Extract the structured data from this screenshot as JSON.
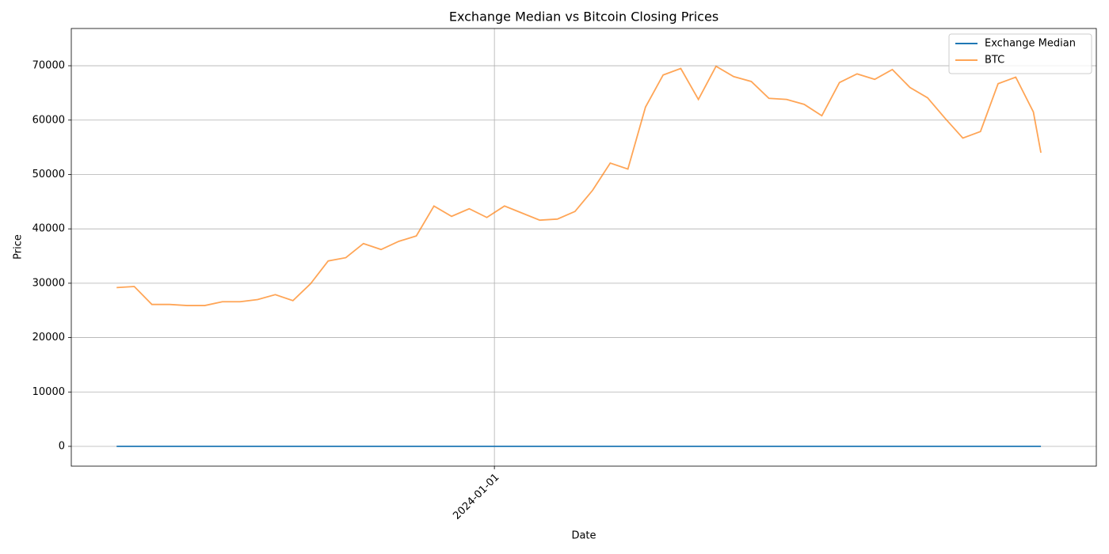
{
  "chart_data": {
    "type": "line",
    "title": "Exchange Median vs Bitcoin Closing Prices",
    "x_label": "Date",
    "y_label": "Price",
    "x": [
      "2023-08-04",
      "2023-08-11",
      "2023-08-18",
      "2023-08-25",
      "2023-09-01",
      "2023-09-08",
      "2023-09-15",
      "2023-09-22",
      "2023-09-29",
      "2023-10-06",
      "2023-10-13",
      "2023-10-20",
      "2023-10-27",
      "2023-11-03",
      "2023-11-10",
      "2023-11-17",
      "2023-11-24",
      "2023-12-01",
      "2023-12-08",
      "2023-12-15",
      "2023-12-22",
      "2023-12-29",
      "2024-01-05",
      "2024-01-12",
      "2024-01-19",
      "2024-01-26",
      "2024-02-02",
      "2024-02-09",
      "2024-02-16",
      "2024-02-23",
      "2024-03-01",
      "2024-03-08",
      "2024-03-15",
      "2024-03-22",
      "2024-03-29",
      "2024-04-05",
      "2024-04-12",
      "2024-04-19",
      "2024-04-26",
      "2024-05-03",
      "2024-05-10",
      "2024-05-17",
      "2024-05-24",
      "2024-05-31",
      "2024-06-07",
      "2024-06-14",
      "2024-06-21",
      "2024-06-28",
      "2024-07-05",
      "2024-07-12",
      "2024-07-19",
      "2024-07-26",
      "2024-08-02",
      "2024-08-05"
    ],
    "series": [
      {
        "name": "Exchange Median",
        "color": "#1f77b4",
        "opacity": 1,
        "values": [
          0,
          0,
          0,
          0,
          0,
          0,
          0,
          0,
          0,
          0,
          0,
          0,
          0,
          0,
          0,
          0,
          0,
          0,
          0,
          0,
          0,
          0,
          0,
          0,
          0,
          0,
          0,
          0,
          0,
          0,
          0,
          0,
          0,
          0,
          0,
          0,
          0,
          0,
          0,
          0,
          0,
          0,
          0,
          0,
          0,
          0,
          0,
          0,
          0,
          0,
          0,
          0,
          0,
          0
        ]
      },
      {
        "name": "BTC",
        "color": "#ff7f0e",
        "opacity": 0.7,
        "values": [
          29200,
          29400,
          26100,
          26100,
          25900,
          25900,
          26600,
          26600,
          27000,
          27900,
          26800,
          29900,
          34100,
          34700,
          37300,
          36200,
          37700,
          38700,
          44200,
          42300,
          43700,
          42100,
          44200,
          42900,
          41600,
          41800,
          43200,
          47100,
          52100,
          51000,
          62400,
          68300,
          69500,
          63800,
          69900,
          68000,
          67100,
          64000,
          63800,
          62900,
          60800,
          66900,
          68500,
          67500,
          69300,
          66000,
          64100,
          60300,
          56700,
          57900,
          66700,
          67900,
          61500,
          54000
        ]
      }
    ],
    "xlim": [
      "2023-07-17",
      "2024-08-27"
    ],
    "xticks": [
      "2024-01-01"
    ],
    "ylim": [
      -3640,
      76850
    ],
    "yticks": [
      0,
      10000,
      20000,
      30000,
      40000,
      50000,
      60000,
      70000
    ],
    "grid": true,
    "legend": "upper right"
  }
}
